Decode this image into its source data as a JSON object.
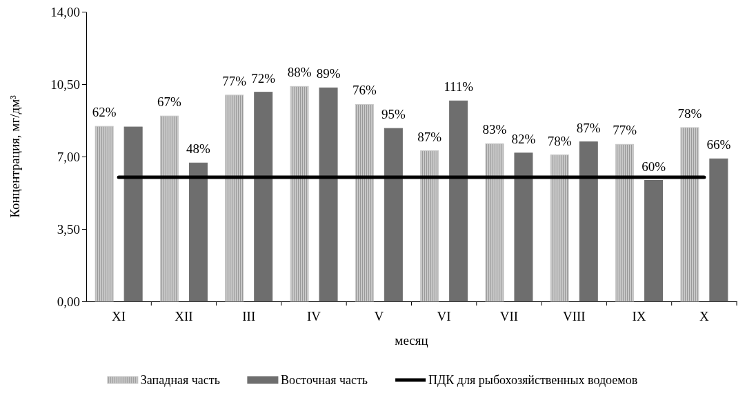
{
  "chart_data": {
    "type": "bar",
    "xlabel": "месяц",
    "ylabel": "Концентрация, мг/дм³",
    "categories": [
      "XI",
      "XII",
      "III",
      "IV",
      "V",
      "VI",
      "VII",
      "VIII",
      "IX",
      "X"
    ],
    "ylim": [
      0,
      14
    ],
    "yticks": [
      {
        "value": 0,
        "label": "0,00"
      },
      {
        "value": 3.5,
        "label": "3,50"
      },
      {
        "value": 7,
        "label": "7,00"
      },
      {
        "value": 10.5,
        "label": "10,50"
      },
      {
        "value": 14,
        "label": "14,00"
      }
    ],
    "grid": false,
    "legend": "bottom",
    "series": [
      {
        "name": "Западная часть",
        "color": "#c8c8c8",
        "values": [
          8.46,
          8.96,
          9.97,
          10.39,
          9.52,
          7.28,
          7.62,
          7.08,
          7.59,
          8.4
        ]
      },
      {
        "name": "Восточная часть",
        "color": "#6e6e6e",
        "values": [
          8.43,
          6.69,
          10.11,
          10.32,
          8.36,
          9.69,
          7.17,
          7.71,
          5.85,
          6.89
        ]
      },
      {
        "name": "ПДК для рыбохозяйственных водоемов",
        "type": "line",
        "color": "#000000",
        "values": [
          6,
          6,
          6,
          6,
          6,
          6,
          6,
          6,
          6,
          6
        ]
      }
    ],
    "annotations": [
      "62%",
      "67%",
      "48%",
      "77%",
      "72%",
      "88%",
      "89%",
      "76%",
      "95%",
      "87%",
      "111%",
      "83%",
      "82%",
      "78%",
      "87%",
      "77%",
      "60%",
      "78%",
      "66%"
    ]
  }
}
